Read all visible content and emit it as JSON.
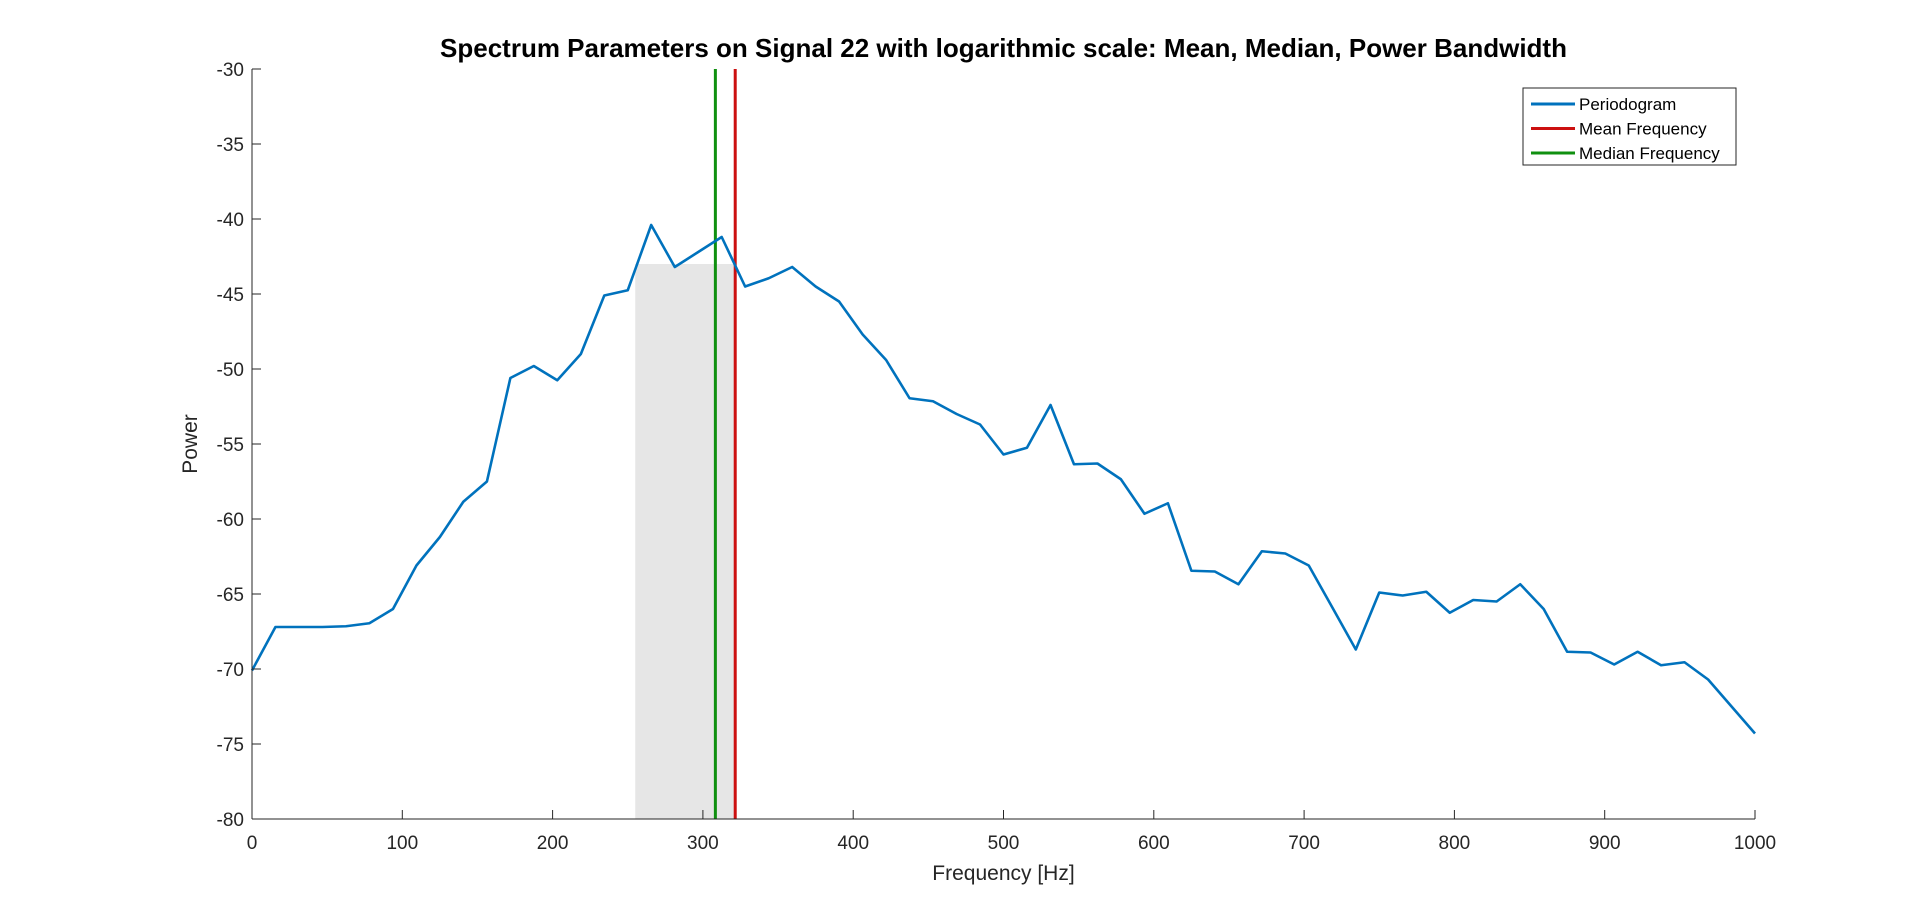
{
  "chart_data": {
    "type": "line",
    "title": "Spectrum Parameters on Signal 22 with logarithmic scale: Mean, Median, Power Bandwidth",
    "xlabel": "Frequency [Hz]",
    "ylabel": "Power",
    "xlim": [
      0,
      1000
    ],
    "ylim": [
      -80,
      -30
    ],
    "xticks": [
      0,
      100,
      200,
      300,
      400,
      500,
      600,
      700,
      800,
      900,
      1000
    ],
    "yticks": [
      -30,
      -35,
      -40,
      -45,
      -50,
      -55,
      -60,
      -65,
      -70,
      -75,
      -80
    ],
    "grid": false,
    "legend_position": "top-right",
    "series": [
      {
        "name": "Periodogram",
        "color": "#0072BD",
        "x": [
          0,
          15.6,
          31.3,
          46.9,
          62.5,
          78.1,
          93.8,
          109.4,
          125,
          140.6,
          156.3,
          171.9,
          187.5,
          203.1,
          218.8,
          234.4,
          250,
          265.6,
          281.3,
          296.9,
          312.5,
          328.1,
          343.8,
          359.4,
          375,
          390.6,
          406.3,
          421.9,
          437.5,
          453.1,
          468.8,
          484.4,
          500,
          515.6,
          531.3,
          546.9,
          562.5,
          578.1,
          593.8,
          609.4,
          625,
          640.6,
          656.3,
          671.9,
          687.5,
          703.1,
          718.8,
          734.4,
          750,
          765.6,
          781.3,
          796.9,
          812.5,
          828.1,
          843.8,
          859.4,
          875,
          890.6,
          906.3,
          921.9,
          937.5,
          953.1,
          968.8,
          984.4,
          1000
        ],
        "y": [
          -70.1,
          -67.2,
          -67.2,
          -67.2,
          -67.15,
          -66.95,
          -66.0,
          -63.1,
          -61.2,
          -58.85,
          -57.5,
          -50.6,
          -49.8,
          -50.75,
          -49.0,
          -45.1,
          -44.75,
          -40.4,
          -43.2,
          -42.2,
          -41.2,
          -44.5,
          -43.95,
          -43.2,
          -44.5,
          -45.5,
          -47.7,
          -49.4,
          -51.95,
          -52.15,
          -53.0,
          -53.7,
          -55.7,
          -55.25,
          -52.4,
          -56.35,
          -56.3,
          -57.35,
          -59.65,
          -58.95,
          -63.45,
          -63.5,
          -64.35,
          -62.15,
          -62.3,
          -63.1,
          -65.9,
          -68.7,
          -64.9,
          -65.1,
          -64.85,
          -66.25,
          -65.4,
          -65.5,
          -64.35,
          -66.0,
          -68.85,
          -68.9,
          -69.7,
          -68.85,
          -69.75,
          -69.55,
          -70.7,
          -72.5,
          -74.3
        ]
      },
      {
        "name": "Mean Frequency",
        "color": "#CC1010",
        "type": "vline",
        "x": 321.5
      },
      {
        "name": "Median Frequency",
        "color": "#109010",
        "type": "vline",
        "x": 308.3
      }
    ],
    "bandwidth_region": {
      "x_start": 255,
      "x_end": 321,
      "y_top": -43,
      "color": "#E6E6E6"
    }
  }
}
